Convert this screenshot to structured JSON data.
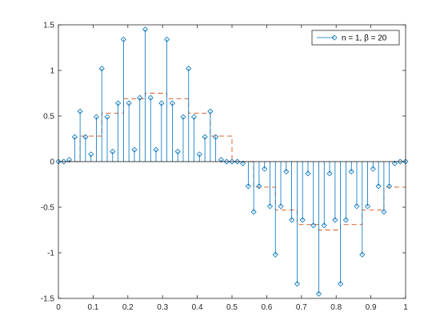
{
  "chart_data": {
    "type": "stem",
    "title": "",
    "xlabel": "",
    "ylabel": "",
    "xlim": [
      0,
      1
    ],
    "ylim": [
      -1.5,
      1.5
    ],
    "xticks": [
      0,
      0.1,
      0.2,
      0.3,
      0.4,
      0.5,
      0.6,
      0.7,
      0.8,
      0.9,
      1
    ],
    "yticks": [
      -1.5,
      -1,
      -0.5,
      0,
      0.5,
      1,
      1.5
    ],
    "xtick_labels": [
      "0",
      "0.1",
      "0.2",
      "0.3",
      "0.4",
      "0.5",
      "0.6",
      "0.7",
      "0.8",
      "0.9",
      "1"
    ],
    "ytick_labels": [
      "-1.5",
      "-1",
      "-0.5",
      "0",
      "0.5",
      "1",
      "1.5"
    ],
    "grid": false,
    "legend_position": "top-right",
    "legend_label": "n = 1, β = 20",
    "series": [
      {
        "name": "n = 1, β = 20",
        "style": "stem",
        "marker": "diamond",
        "color": "#0072bd",
        "x": [
          0.0,
          0.0156,
          0.0312,
          0.0469,
          0.0625,
          0.0781,
          0.0938,
          0.1094,
          0.125,
          0.1406,
          0.1562,
          0.1719,
          0.1875,
          0.2031,
          0.2188,
          0.2344,
          0.25,
          0.2656,
          0.2812,
          0.2969,
          0.3125,
          0.3281,
          0.3438,
          0.3594,
          0.375,
          0.3906,
          0.4062,
          0.4219,
          0.4375,
          0.4531,
          0.4688,
          0.4844,
          0.5,
          0.5156,
          0.5312,
          0.5469,
          0.5625,
          0.5781,
          0.5938,
          0.6094,
          0.625,
          0.6406,
          0.6562,
          0.6719,
          0.6875,
          0.7031,
          0.7188,
          0.7344,
          0.75,
          0.7656,
          0.7812,
          0.7969,
          0.8125,
          0.8281,
          0.8438,
          0.8594,
          0.875,
          0.8906,
          0.9062,
          0.9219,
          0.9375,
          0.9531,
          0.9688,
          0.9844,
          1.0
        ],
        "y": [
          0,
          0,
          0.02,
          0.27,
          0.55,
          0.27,
          0.08,
          0.49,
          1.02,
          0.49,
          0.11,
          0.64,
          1.34,
          0.64,
          0.13,
          0.7,
          1.45,
          0.7,
          0.13,
          0.64,
          1.34,
          0.64,
          0.11,
          0.49,
          1.02,
          0.49,
          0.08,
          0.27,
          0.55,
          0.27,
          0.02,
          0,
          0,
          0,
          -0.02,
          -0.27,
          -0.55,
          -0.27,
          -0.08,
          -0.49,
          -1.02,
          -0.49,
          -0.11,
          -0.64,
          -1.34,
          -0.64,
          -0.13,
          -0.7,
          -1.45,
          -0.7,
          -0.13,
          -0.64,
          -1.34,
          -0.64,
          -0.11,
          -0.49,
          -1.02,
          -0.49,
          -0.08,
          -0.27,
          -0.55,
          -0.27,
          -0.02,
          0,
          0
        ]
      },
      {
        "style": "dashed-step",
        "color": "#d95319",
        "x": [
          0,
          0.0625,
          0.125,
          0.1875,
          0.25,
          0.3125,
          0.375,
          0.4375,
          0.5,
          0.5625,
          0.625,
          0.6875,
          0.75,
          0.8125,
          0.875,
          0.9375,
          1.0
        ],
        "y": [
          0,
          0.28,
          0.53,
          0.69,
          0.75,
          0.69,
          0.53,
          0.28,
          0,
          -0.28,
          -0.53,
          -0.69,
          -0.75,
          -0.69,
          -0.53,
          -0.28,
          0
        ]
      }
    ]
  }
}
